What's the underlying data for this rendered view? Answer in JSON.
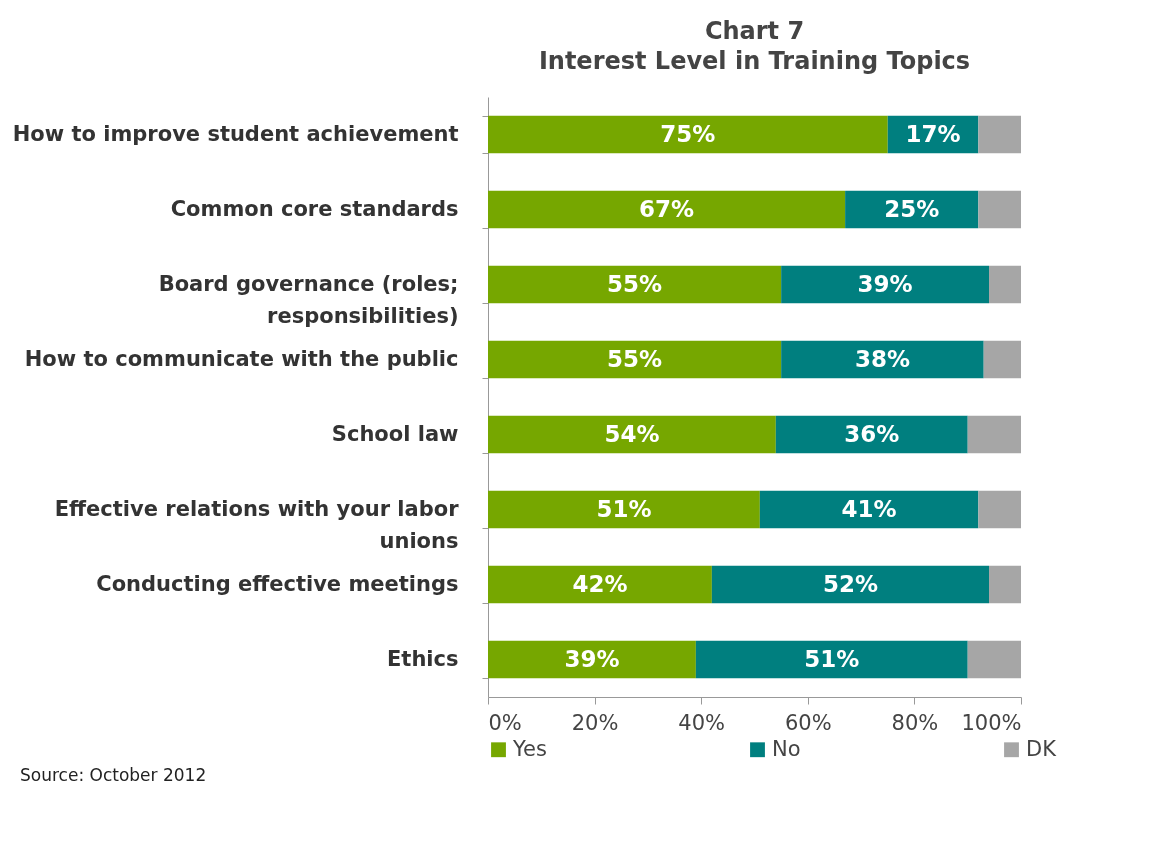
{
  "chart_data": {
    "type": "bar",
    "title": "Chart 7",
    "subtitle": "Interest Level in Training Topics",
    "orientation": "horizontal",
    "stacked": true,
    "categories": [
      "How to improve student achievement",
      "Common core standards",
      "Board governance (roles; responsibilities)",
      "How to communicate with the public",
      "School law",
      "Effective relations with your labor unions",
      "Conducting effective meetings",
      "Ethics"
    ],
    "series": [
      {
        "name": "Yes",
        "color": "#76a700",
        "values": [
          75,
          67,
          55,
          55,
          54,
          51,
          42,
          39
        ],
        "value_labels": [
          "75%",
          "67%",
          "55%",
          "55%",
          "54%",
          "51%",
          "42%",
          "39%"
        ]
      },
      {
        "name": "No",
        "color": "#007f7f",
        "values": [
          17,
          25,
          39,
          38,
          36,
          41,
          52,
          51
        ],
        "value_labels": [
          "17%",
          "25%",
          "39%",
          "38%",
          "36%",
          "41%",
          "52%",
          "51%"
        ]
      },
      {
        "name": "DK",
        "color": "#a6a6a6",
        "values": [
          8,
          8,
          6,
          7,
          10,
          8,
          6,
          10
        ],
        "value_labels": [
          null,
          null,
          null,
          null,
          null,
          null,
          null,
          null
        ]
      }
    ],
    "xlim": [
      0,
      100
    ],
    "xticks": [
      {
        "value": 0,
        "label": "0%"
      },
      {
        "value": 20,
        "label": "20%"
      },
      {
        "value": 40,
        "label": "40%"
      },
      {
        "value": 60,
        "label": "60%"
      },
      {
        "value": 80,
        "label": "80%"
      },
      {
        "value": 100,
        "label": "100%"
      }
    ],
    "grid": false,
    "legend": "bottom",
    "annotations": [
      "Source: October 2012"
    ]
  }
}
